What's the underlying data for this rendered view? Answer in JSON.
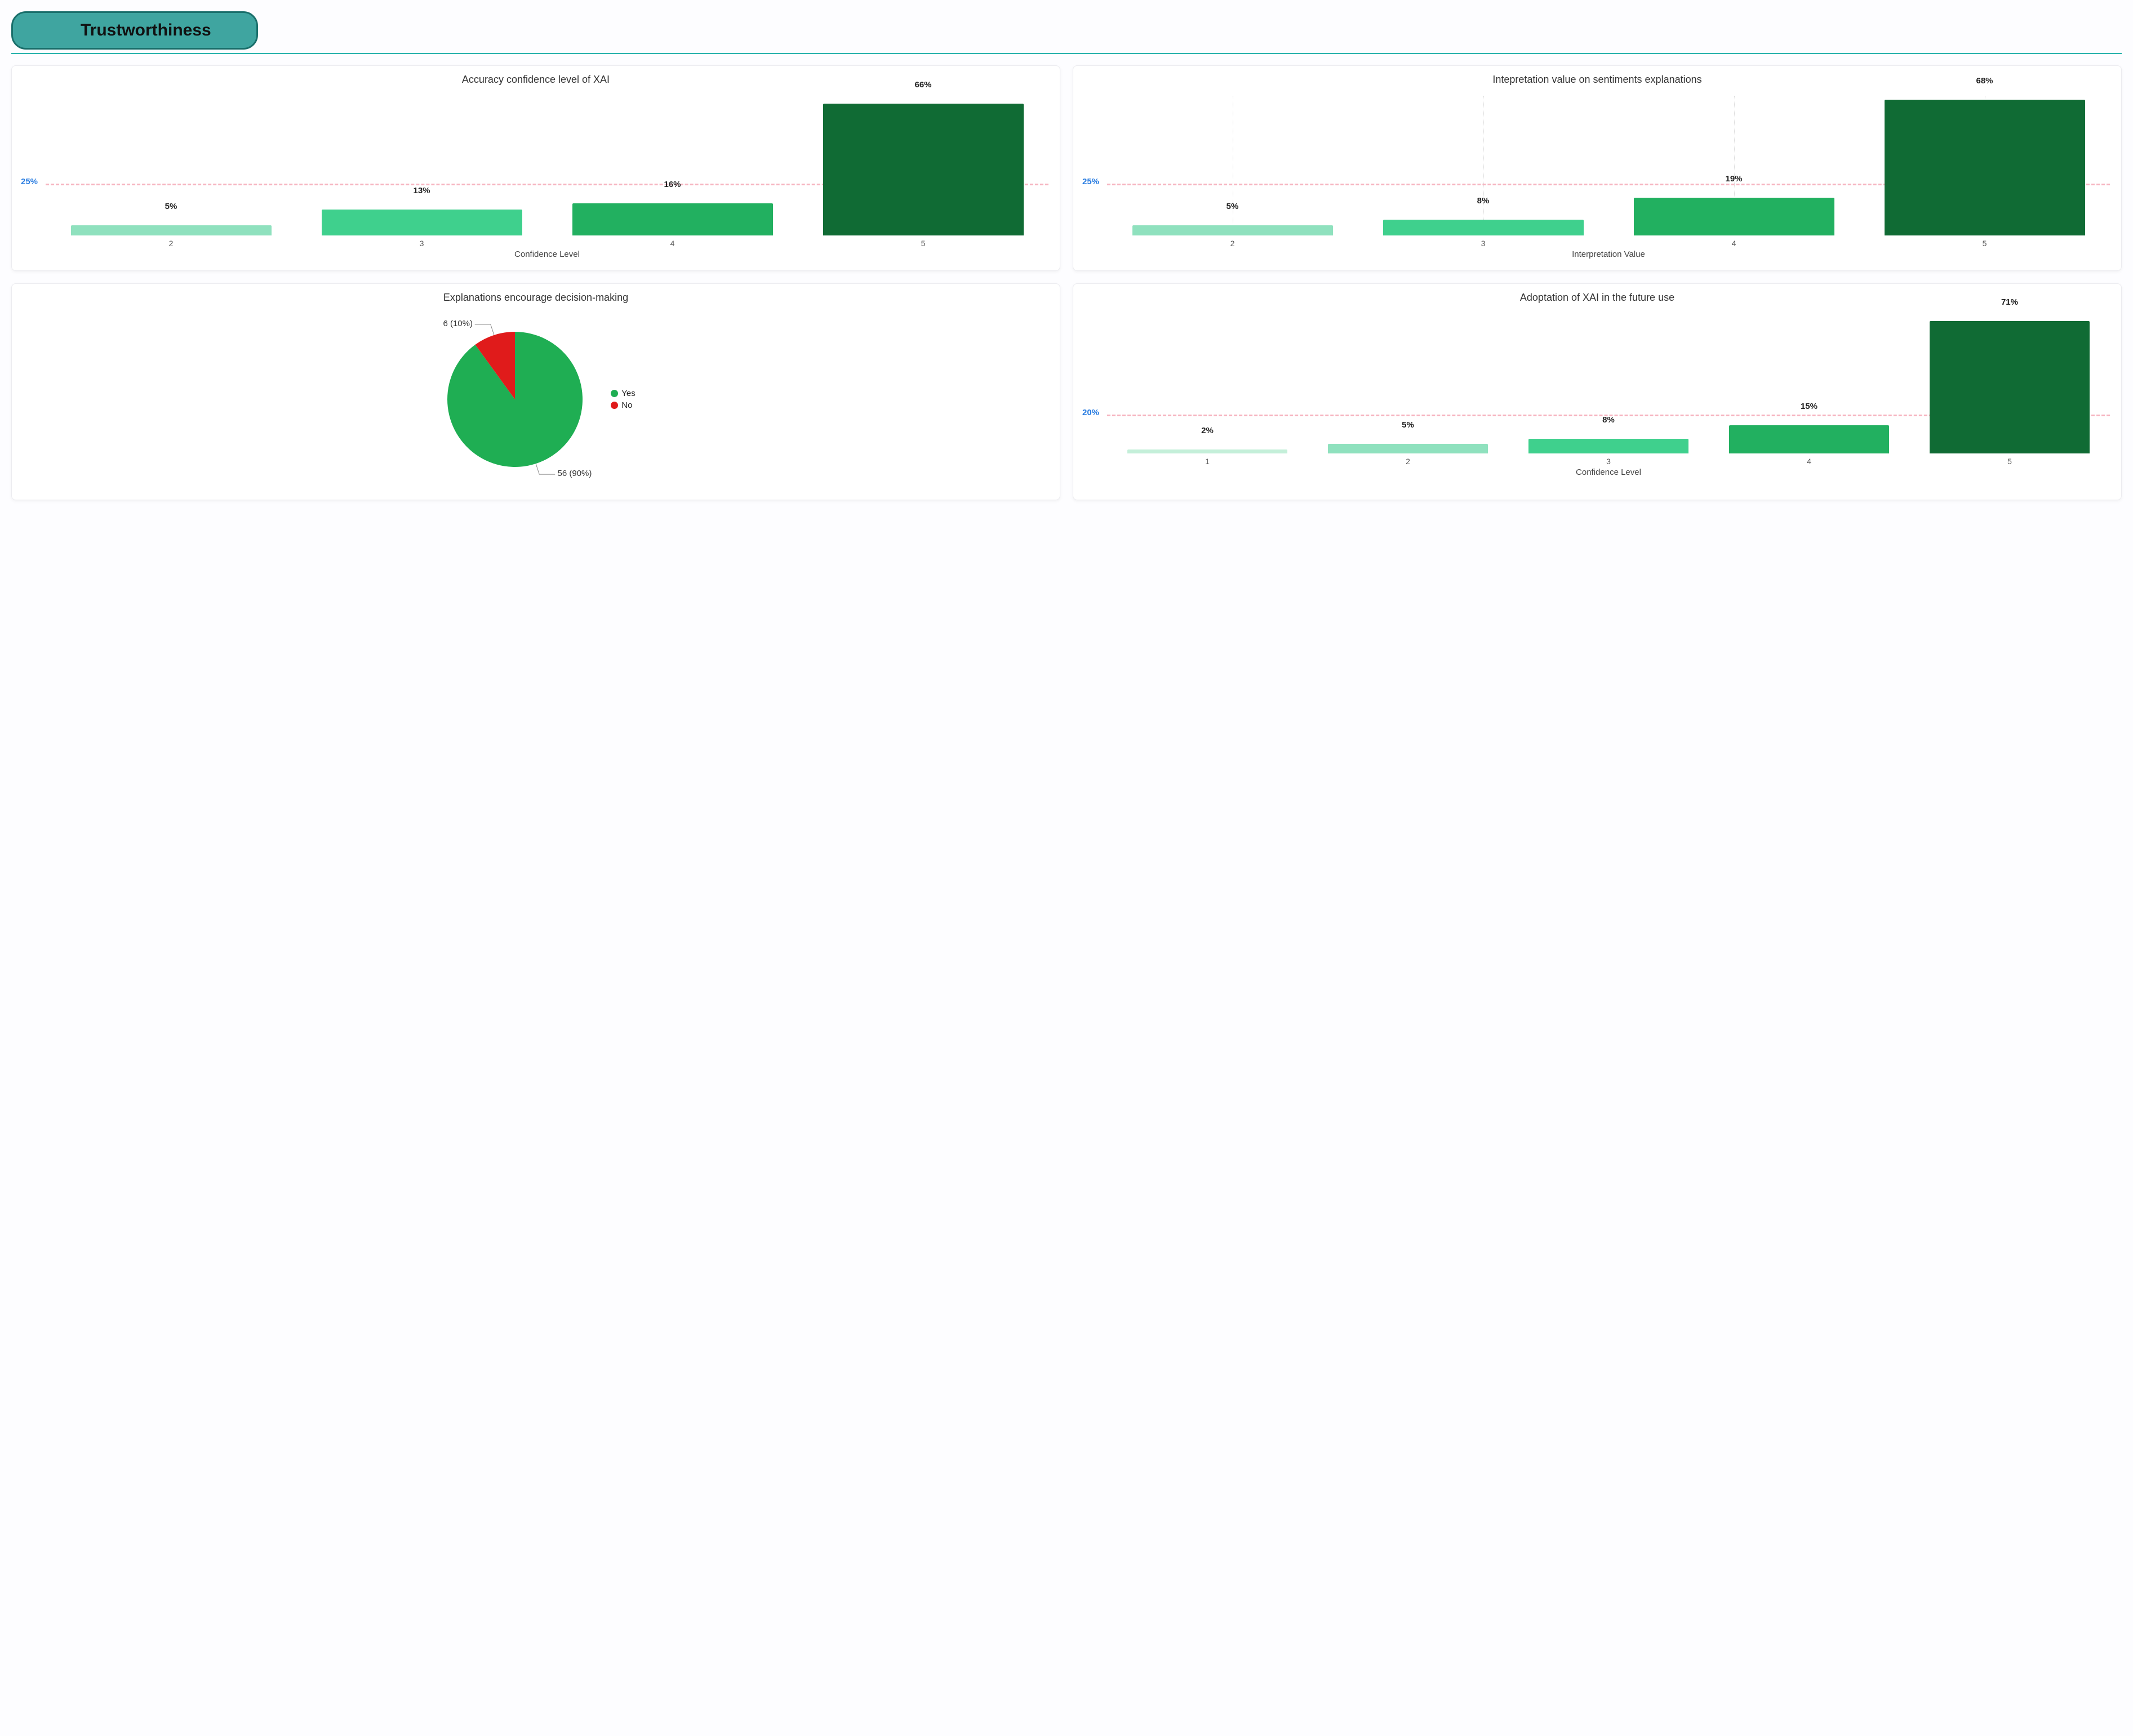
{
  "header": {
    "label": "Trustworthiness",
    "bg_color": "#3fa5a0",
    "border_color": "#1a6f6b",
    "text_color": "#111111",
    "divider_color": "#2bb3ad"
  },
  "globals": {
    "card_bg": "#ffffff",
    "ref_line_color": "#f6b4c0",
    "ref_label_color": "#2a7de1",
    "title_fontsize": 18,
    "label_fontsize": 15
  },
  "charts": {
    "accuracy": {
      "type": "bar",
      "title": "Accuracy confidence level of XAI",
      "xlabel": "Confidence Level",
      "categories": [
        "2",
        "3",
        "4",
        "5"
      ],
      "values": [
        5,
        13,
        16,
        66
      ],
      "value_labels": [
        "5%",
        "13%",
        "16%",
        "66%"
      ],
      "bar_colors": [
        "#8fe1be",
        "#3fd08d",
        "#22b060",
        "#106b34"
      ],
      "ylim": [
        0,
        70
      ],
      "ref_value": 25,
      "ref_label": "25%",
      "bar_width": 0.8,
      "grid_vertical": false
    },
    "interpretation": {
      "type": "bar",
      "title": "Intepretation value on sentiments explanations",
      "xlabel": "Interpretation Value",
      "categories": [
        "2",
        "3",
        "4",
        "5"
      ],
      "values": [
        5,
        8,
        19,
        68
      ],
      "value_labels": [
        "5%",
        "8%",
        "19%",
        "68%"
      ],
      "bar_colors": [
        "#8fe1be",
        "#3fd08d",
        "#22b060",
        "#106b34"
      ],
      "ylim": [
        0,
        70
      ],
      "ref_value": 25,
      "ref_label": "25%",
      "bar_width": 0.8,
      "grid_vertical": true
    },
    "decision_pie": {
      "type": "pie",
      "title": "Explanations encourage decision-making",
      "slices": [
        {
          "label": "Yes",
          "count": 56,
          "pct": 90,
          "color": "#1fae53",
          "callout": "56 (90%)"
        },
        {
          "label": "No",
          "count": 6,
          "pct": 10,
          "color": "#e01b1b",
          "callout": "6 (10%)"
        }
      ],
      "start_angle_deg": -90,
      "leader_color": "#888888"
    },
    "adoption": {
      "type": "bar",
      "title": "Adoptation of XAI in the future use",
      "xlabel": "Confidence Level",
      "categories": [
        "1",
        "2",
        "3",
        "4",
        "5"
      ],
      "values": [
        2,
        5,
        8,
        15,
        71
      ],
      "value_labels": [
        "2%",
        "5%",
        "8%",
        "15%",
        "71%"
      ],
      "bar_colors": [
        "#c4efd9",
        "#8fe1be",
        "#3fd08d",
        "#22b060",
        "#106b34"
      ],
      "ylim": [
        0,
        75
      ],
      "ref_value": 20,
      "ref_label": "20%",
      "bar_width": 0.8,
      "grid_vertical": false
    }
  }
}
